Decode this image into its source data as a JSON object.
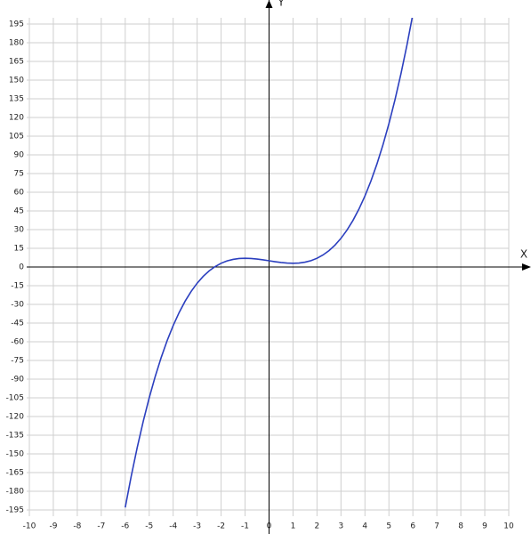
{
  "chart_data": {
    "type": "line",
    "x_label": "X",
    "y_label": "Y",
    "x": [
      -6,
      -5.75,
      -5.5,
      -5.25,
      -5,
      -4.75,
      -4.5,
      -4.25,
      -4,
      -3.75,
      -3.5,
      -3.25,
      -3,
      -2.75,
      -2.5,
      -2.25,
      -2,
      -1.75,
      -1.5,
      -1.25,
      -1,
      -0.75,
      -0.5,
      -0.25,
      0,
      0.25,
      0.5,
      0.75,
      1,
      1.25,
      1.5,
      1.75,
      2,
      2.25,
      2.5,
      2.75,
      3,
      3.25,
      3.5,
      3.75,
      4,
      4.25,
      4.5,
      4.75,
      5,
      5.25,
      5.5,
      5.75,
      6
    ],
    "series": [
      {
        "color": "#2b3fbf",
        "values": [
          -193,
          -167.859,
          -144.875,
          -123.953,
          -105,
          -87.922,
          -72.625,
          -59.016,
          -47,
          -36.484,
          -27.375,
          -19.578,
          -13,
          -7.547,
          -3.125,
          0.359,
          3,
          4.891,
          6.125,
          6.797,
          7,
          6.828,
          6.375,
          5.734,
          5,
          4.266,
          3.625,
          3.172,
          3,
          3.203,
          3.875,
          5.109,
          7,
          9.641,
          13.125,
          17.547,
          23,
          29.578,
          37.375,
          46.484,
          57,
          69.016,
          82.625,
          97.922,
          115,
          133.953,
          154.875,
          177.859,
          203
        ]
      }
    ],
    "xlim": [
      -10,
      10
    ],
    "ylim": [
      -200,
      200
    ],
    "xticks": [
      -10,
      -9,
      -8,
      -7,
      -6,
      -5,
      -4,
      -3,
      -2,
      -1,
      0,
      1,
      2,
      3,
      4,
      5,
      6,
      7,
      8,
      9,
      10
    ],
    "yticks": [
      -195,
      -180,
      -165,
      -150,
      -135,
      -120,
      -105,
      -90,
      -75,
      -60,
      -45,
      -30,
      -15,
      0,
      15,
      30,
      45,
      60,
      75,
      90,
      105,
      120,
      135,
      150,
      165,
      180,
      195
    ],
    "grid": true
  }
}
